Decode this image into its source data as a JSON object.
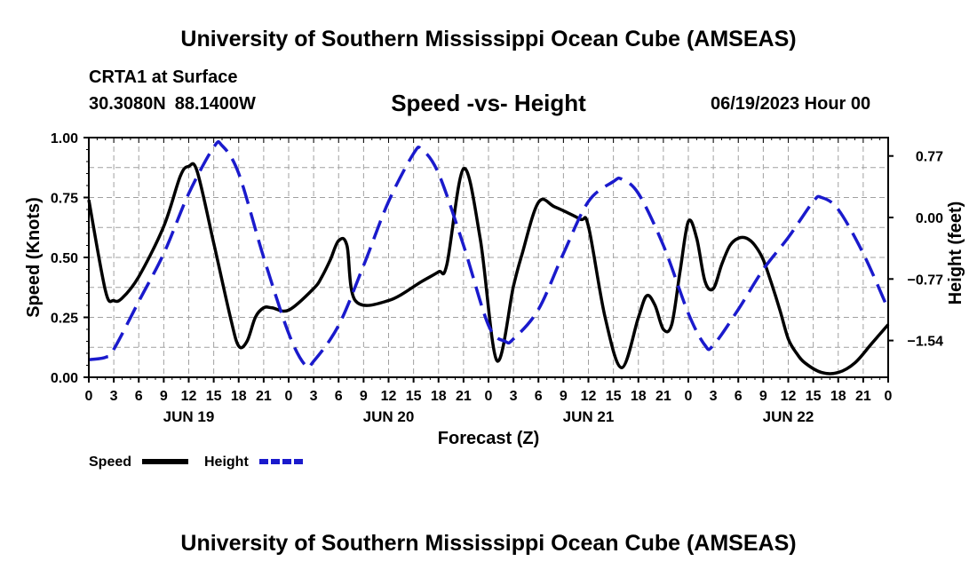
{
  "header": {
    "title": "University of Southern Mississippi Ocean Cube (AMSEAS)",
    "station": "CRTA1 at Surface",
    "latitude": "30.3080N",
    "longitude": "88.1400W",
    "subtitle": "Speed -vs- Height",
    "datetime": "06/19/2023 Hour 00"
  },
  "footer": {
    "title": "University of Southern Mississippi Ocean Cube (AMSEAS)"
  },
  "chart_data": {
    "type": "line",
    "title": "Speed -vs- Height",
    "xlabel": "Forecast (Z)",
    "ylabel": "Speed (Knots)",
    "y2label": "Height (feet)",
    "xlim": [
      0,
      96
    ],
    "ylim": [
      0,
      1
    ],
    "y2lim": [
      -2.0,
      1.0
    ],
    "grid": true,
    "x_tick_labels": [
      "0",
      "3",
      "6",
      "9",
      "12",
      "15",
      "18",
      "21",
      "0",
      "3",
      "6",
      "9",
      "12",
      "15",
      "18",
      "21",
      "0",
      "3",
      "6",
      "9",
      "12",
      "15",
      "18",
      "21",
      "0",
      "3",
      "6",
      "9",
      "12",
      "15",
      "18",
      "21",
      "0"
    ],
    "day_labels": [
      {
        "hour": 12,
        "label": "JUN 19"
      },
      {
        "hour": 36,
        "label": "JUN 20"
      },
      {
        "hour": 60,
        "label": "JUN 21"
      },
      {
        "hour": 84,
        "label": "JUN 22"
      }
    ],
    "y_ticks": [
      0.0,
      0.25,
      0.5,
      0.75,
      1.0
    ],
    "y_tick_labels": [
      "0.00",
      "0.25",
      "0.50",
      "0.75",
      "1.00"
    ],
    "y2_ticks": [
      -1.54,
      -0.77,
      0.0,
      0.77
    ],
    "y2_tick_labels": [
      "−1.54",
      "−0.77",
      "0.00",
      "0.77"
    ],
    "legend": [
      {
        "name": "Speed",
        "color": "#000000",
        "style": "solid"
      },
      {
        "name": "Height",
        "color": "#1a1acc",
        "style": "dashed"
      }
    ],
    "series": [
      {
        "name": "Speed",
        "axis": "left",
        "color": "#000000",
        "x": [
          0,
          2,
          3,
          4,
          6,
          9,
          11,
          12,
          13,
          15,
          17,
          18,
          19,
          20,
          21,
          22,
          24,
          27,
          28,
          29,
          30,
          31,
          32,
          36,
          40,
          42,
          43,
          45,
          47,
          49,
          51,
          52,
          54,
          56,
          59,
          60,
          62,
          64,
          66,
          67,
          68,
          69,
          70,
          71,
          72,
          73,
          74,
          75,
          76,
          77,
          78,
          79,
          80,
          81,
          82,
          83,
          84,
          85,
          86,
          88,
          90,
          92,
          94,
          96
        ],
        "values": [
          0.74,
          0.36,
          0.32,
          0.33,
          0.42,
          0.63,
          0.84,
          0.88,
          0.86,
          0.56,
          0.25,
          0.13,
          0.15,
          0.25,
          0.29,
          0.29,
          0.28,
          0.37,
          0.42,
          0.49,
          0.57,
          0.55,
          0.32,
          0.32,
          0.4,
          0.44,
          0.47,
          0.87,
          0.58,
          0.07,
          0.38,
          0.51,
          0.73,
          0.71,
          0.66,
          0.63,
          0.25,
          0.04,
          0.25,
          0.34,
          0.3,
          0.2,
          0.22,
          0.44,
          0.65,
          0.58,
          0.4,
          0.37,
          0.47,
          0.55,
          0.58,
          0.58,
          0.55,
          0.49,
          0.39,
          0.28,
          0.16,
          0.1,
          0.06,
          0.02,
          0.02,
          0.06,
          0.14,
          0.22
        ]
      },
      {
        "name": "Height",
        "axis": "right",
        "color": "#1a1acc",
        "x": [
          0,
          2,
          3,
          6,
          9,
          12,
          15,
          16,
          18,
          21,
          24,
          26,
          27,
          30,
          33,
          36,
          39,
          40,
          42,
          45,
          48,
          50,
          51,
          54,
          57,
          60,
          63,
          64,
          66,
          69,
          72,
          74,
          75,
          78,
          81,
          84,
          87,
          88,
          90,
          93,
          96
        ],
        "values": [
          -1.78,
          -1.75,
          -1.65,
          -1.05,
          -0.45,
          0.3,
          0.88,
          0.9,
          0.55,
          -0.5,
          -1.45,
          -1.85,
          -1.8,
          -1.35,
          -0.6,
          0.2,
          0.8,
          0.85,
          0.55,
          -0.35,
          -1.35,
          -1.55,
          -1.52,
          -1.15,
          -0.45,
          0.2,
          0.45,
          0.48,
          0.3,
          -0.35,
          -1.2,
          -1.6,
          -1.6,
          -1.15,
          -0.65,
          -0.25,
          0.2,
          0.25,
          0.1,
          -0.45,
          -1.15
        ]
      }
    ]
  }
}
